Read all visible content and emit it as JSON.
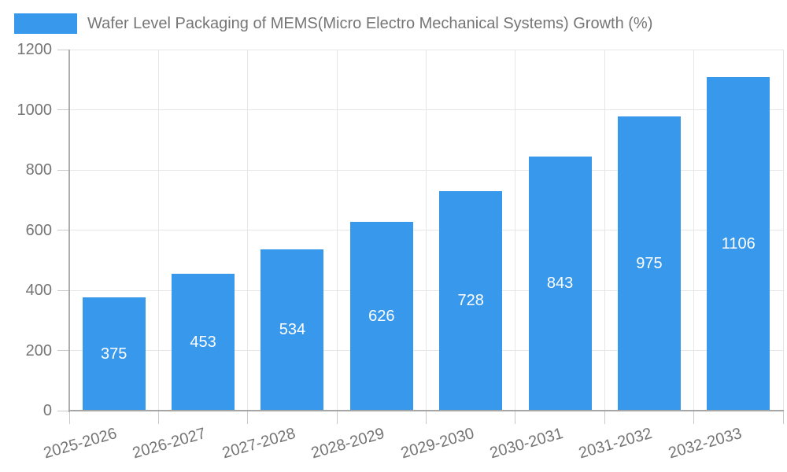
{
  "chart_data": {
    "type": "bar",
    "series_name": "Wafer Level Packaging of MEMS(Micro Electro Mechanical Systems) Growth (%)",
    "categories": [
      "2025-2026",
      "2026-2027",
      "2027-2028",
      "2028-2029",
      "2029-2030",
      "2030-2031",
      "2031-2032",
      "2032-2033"
    ],
    "values": [
      375,
      453,
      534,
      626,
      728,
      843,
      975,
      1106
    ],
    "title": "",
    "xlabel": "",
    "ylabel": "",
    "ylim": [
      0,
      1200
    ],
    "yticks": [
      0,
      200,
      400,
      600,
      800,
      1000,
      1200
    ],
    "grid": true,
    "legend_position": "top-left",
    "colors": {
      "bar": "#3898ec",
      "value_label": "#ffffff",
      "axis_text": "#757575",
      "gridline": "#e6e6e6",
      "tick": "#c9c9c9",
      "axis_line": "#a6a6a6",
      "background": "#ffffff"
    }
  }
}
